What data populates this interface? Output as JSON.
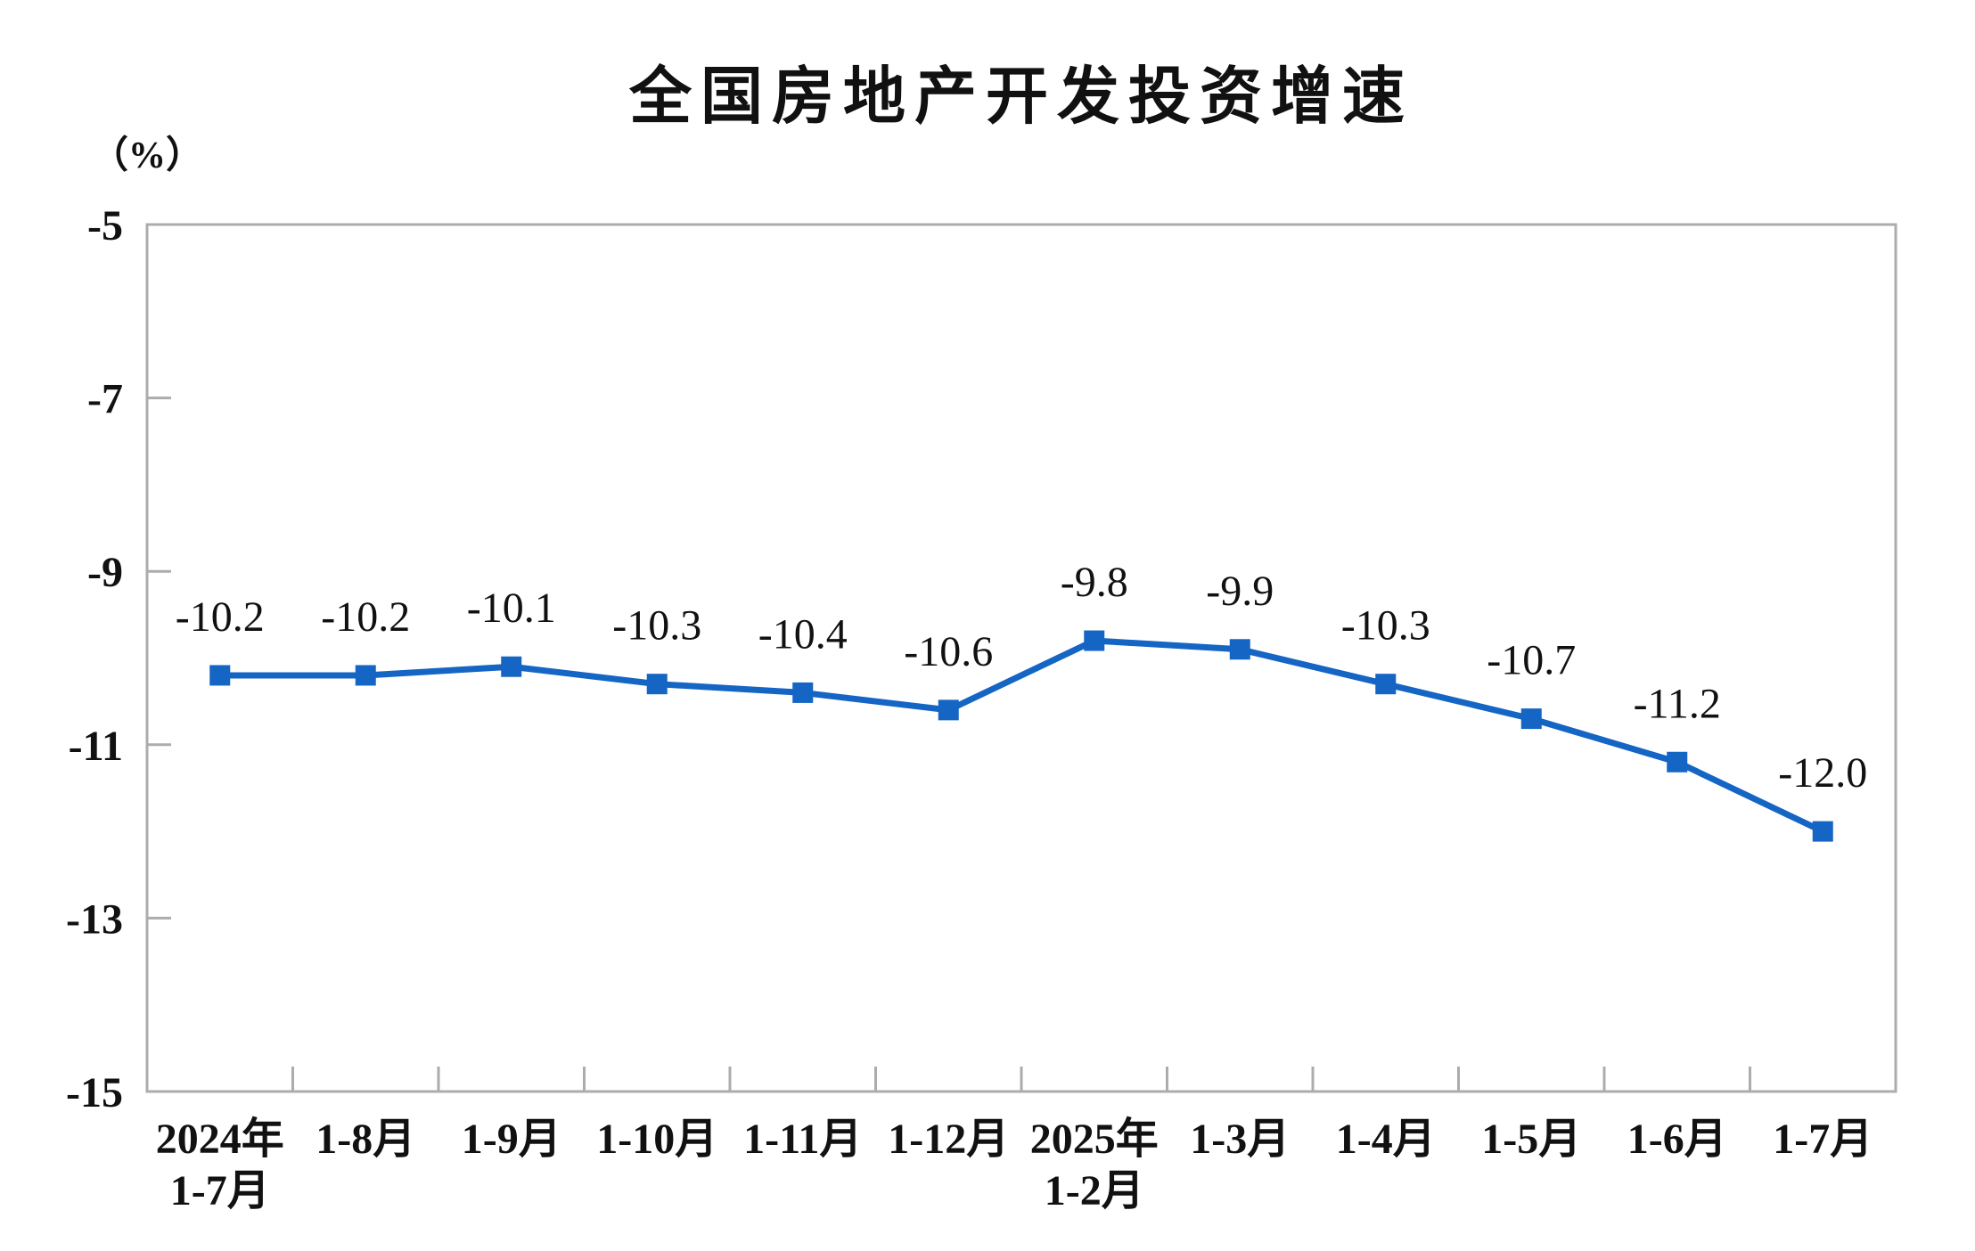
{
  "chart_data": {
    "type": "line",
    "title": "全国房地产开发投资增速",
    "unit_label": "（%）",
    "categories": [
      [
        "2024年",
        "1-7月"
      ],
      [
        "1-8月"
      ],
      [
        "1-9月"
      ],
      [
        "1-10月"
      ],
      [
        "1-11月"
      ],
      [
        "1-12月"
      ],
      [
        "2025年",
        "1-2月"
      ],
      [
        "1-3月"
      ],
      [
        "1-4月"
      ],
      [
        "1-5月"
      ],
      [
        "1-6月"
      ],
      [
        "1-7月"
      ]
    ],
    "values": [
      -10.2,
      -10.2,
      -10.1,
      -10.3,
      -10.4,
      -10.6,
      -9.8,
      -9.9,
      -10.3,
      -10.7,
      -11.2,
      -12.0
    ],
    "data_labels": [
      "-10.2",
      "-10.2",
      "-10.1",
      "-10.3",
      "-10.4",
      "-10.6",
      "-9.8",
      "-9.9",
      "-10.3",
      "-10.7",
      "-11.2",
      "-12.0"
    ],
    "y_ticks": [
      "-5",
      "-7",
      "-9",
      "-11",
      "-13",
      "-15"
    ],
    "y_tick_values": [
      -5,
      -7,
      -9,
      -11,
      -13,
      -15
    ],
    "ylim": [
      -15,
      -5
    ],
    "xlabel": "",
    "ylabel": "（%）",
    "grid": false,
    "legend": "none",
    "marker": "square",
    "colors": {
      "series": "#1565C4",
      "axis": "#ACACAC",
      "text": "#111111",
      "background": "#FFFFFF"
    }
  }
}
